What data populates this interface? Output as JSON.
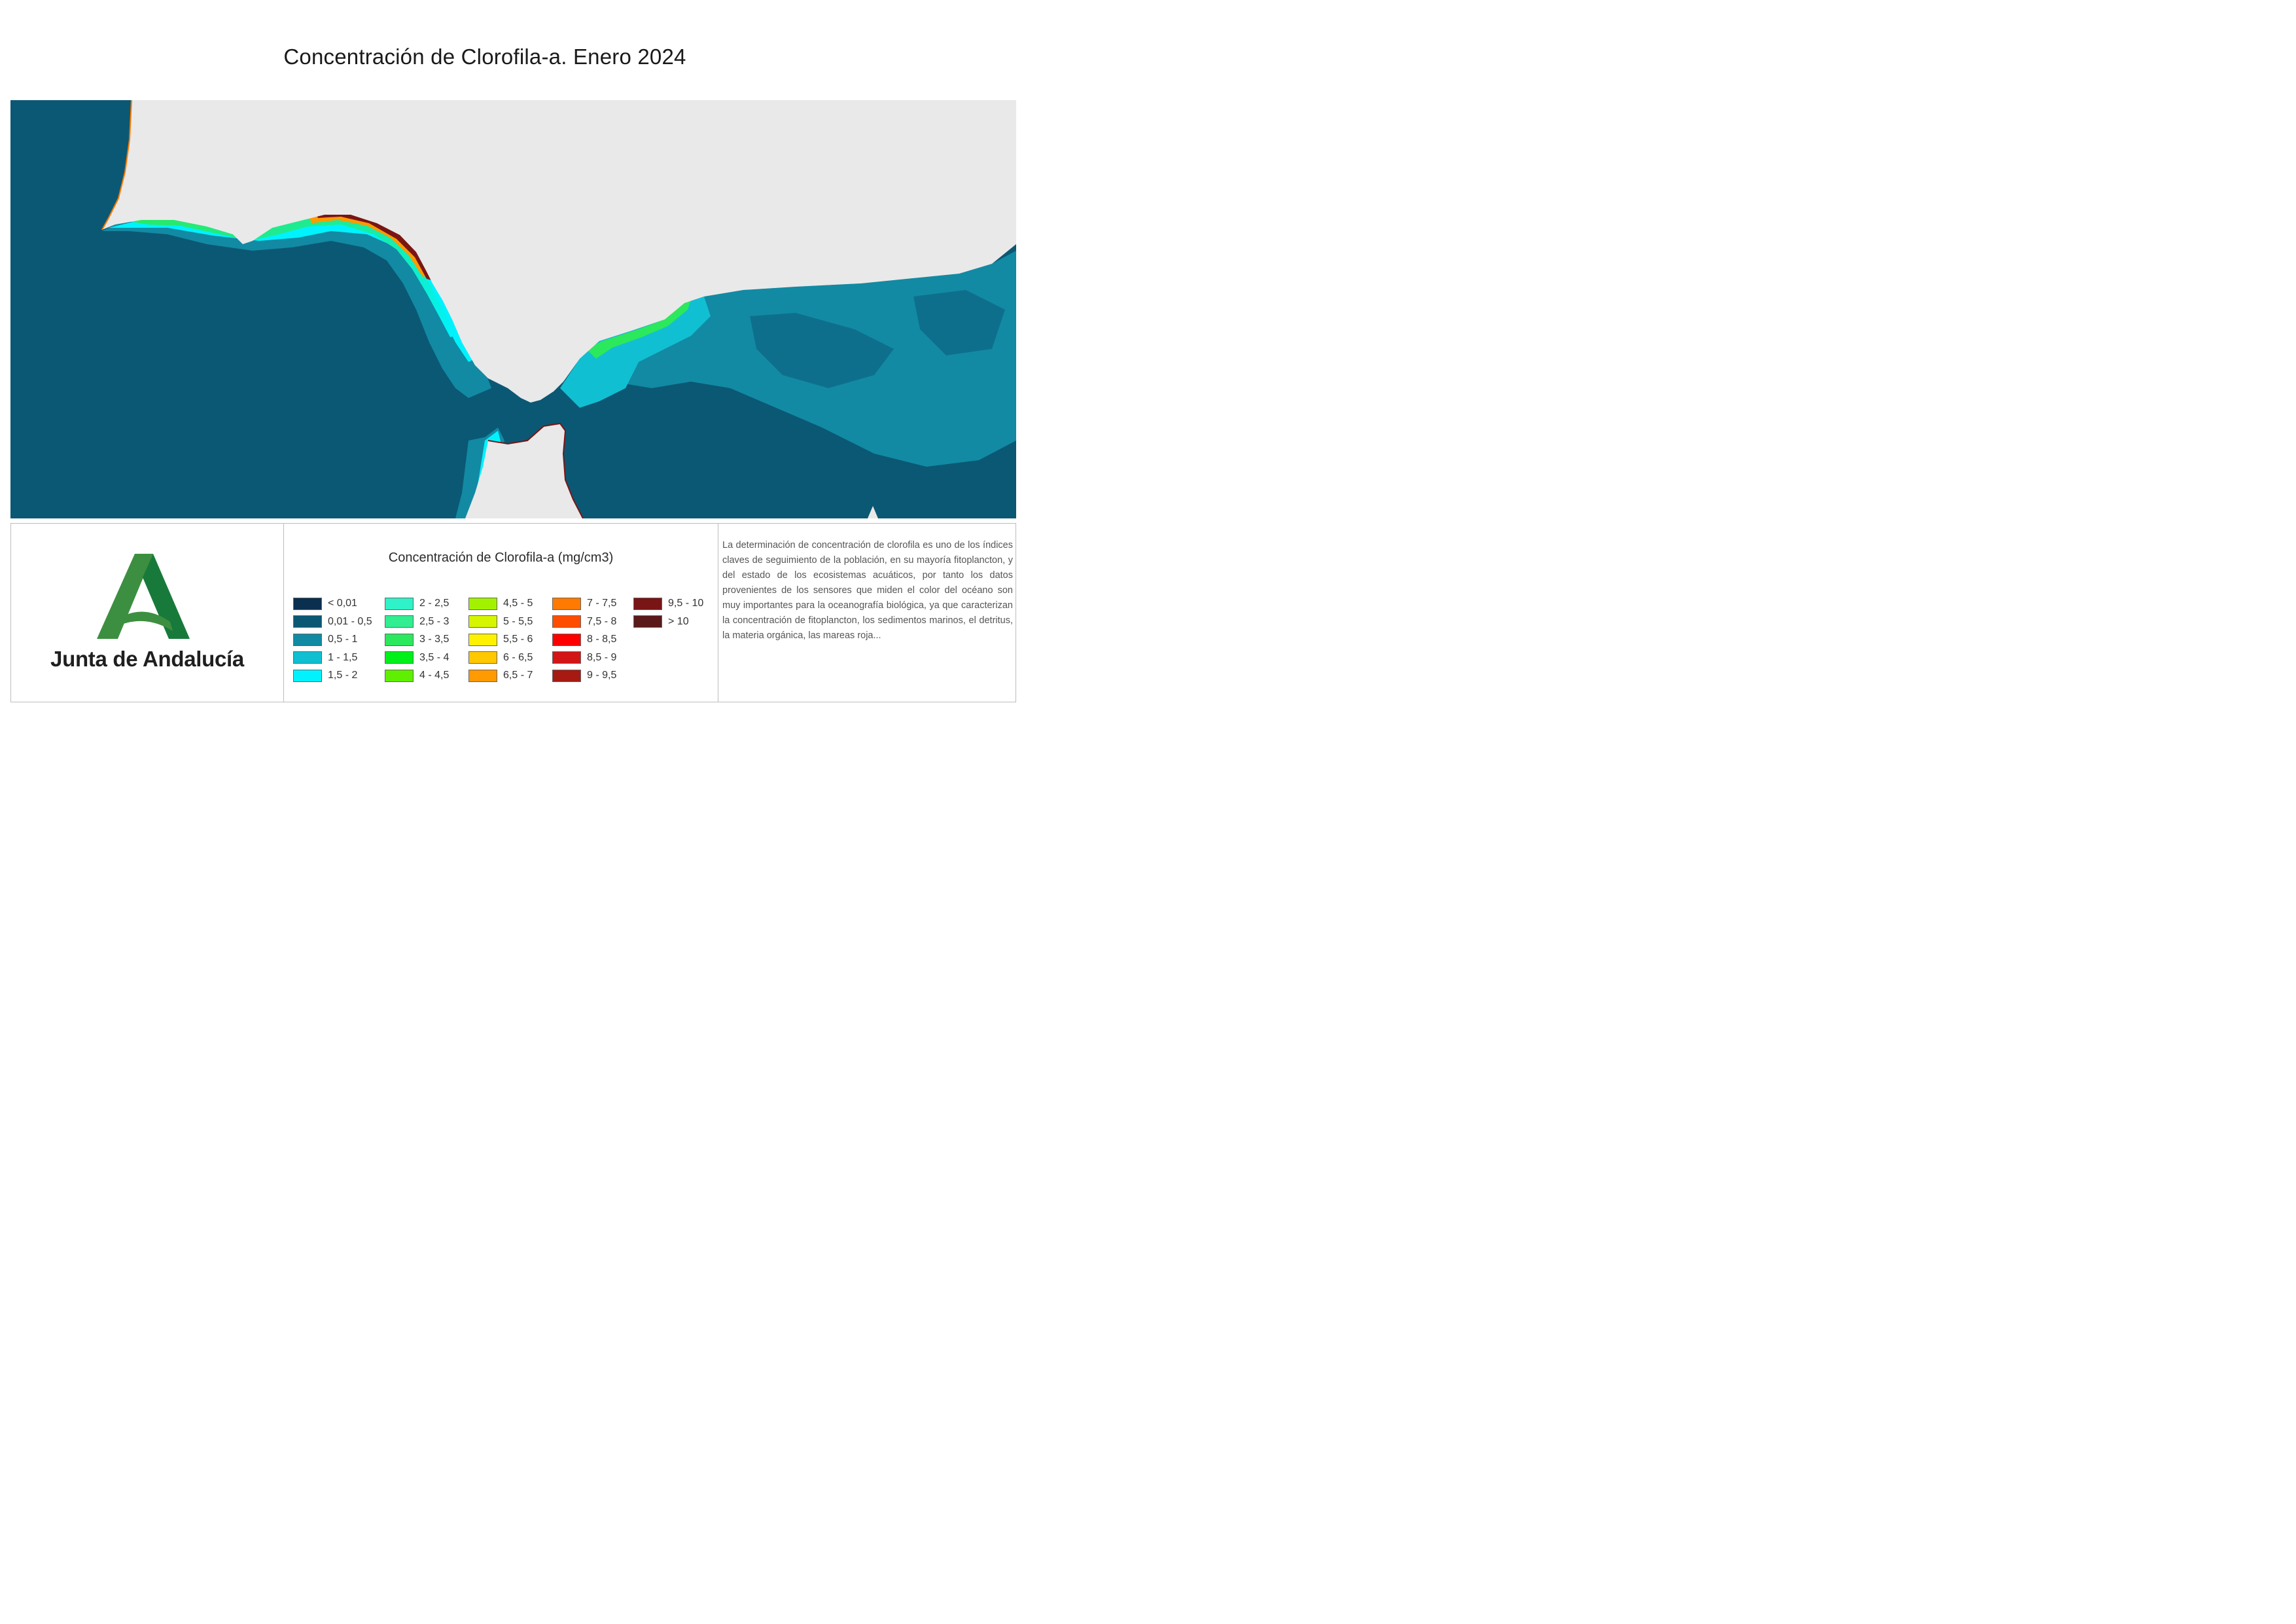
{
  "title": "Concentración de Clorofila-a. Enero 2024",
  "colors": {
    "land": "#e9e9e9",
    "sea": "#0b5874",
    "sea_mid": "#128aa3",
    "logo_green_light": "#3c8f40",
    "logo_green_dark": "#187a3a"
  },
  "logo": {
    "icon": "junta-andalucia-a-logo",
    "organization": "Junta de Andalucía"
  },
  "legend": {
    "title": "Concentración de Clorofila-a (mg/cm3)",
    "items": [
      {
        "label": "< 0,01",
        "color": "#0a2f4f"
      },
      {
        "label": "0,01 - 0,5",
        "color": "#0b5874"
      },
      {
        "label": "0,5 - 1",
        "color": "#128aa3"
      },
      {
        "label": "1 - 1,5",
        "color": "#11bfd2"
      },
      {
        "label": "1,5 - 2",
        "color": "#00f2ff"
      },
      {
        "label": "2 - 2,5",
        "color": "#2ff2c8"
      },
      {
        "label": "2,5 - 3",
        "color": "#31ee90"
      },
      {
        "label": "3 - 3,5",
        "color": "#2ce85c"
      },
      {
        "label": "3,5 - 4",
        "color": "#00f01a"
      },
      {
        "label": "4 - 4,5",
        "color": "#5ef000"
      },
      {
        "label": "4,5 - 5",
        "color": "#a2f200"
      },
      {
        "label": "5 - 5,5",
        "color": "#d6f500"
      },
      {
        "label": "5,5 - 6",
        "color": "#fff200"
      },
      {
        "label": "6 - 6,5",
        "color": "#ffc800"
      },
      {
        "label": "6,5 - 7",
        "color": "#ff9a00"
      },
      {
        "label": "7 - 7,5",
        "color": "#ff7a00"
      },
      {
        "label": "7,5 - 8",
        "color": "#ff4d00"
      },
      {
        "label": "8 - 8,5",
        "color": "#ff0000"
      },
      {
        "label": "8,5 - 9",
        "color": "#d41515"
      },
      {
        "label": "9 - 9,5",
        "color": "#a61a12"
      },
      {
        "label": "9,5 - 10",
        "color": "#7a1515"
      },
      {
        "label": "> 10",
        "color": "#5a1a1a"
      }
    ]
  },
  "description": "La determinación de concentración de clorofila es uno de los índices claves de seguimiento de la población, en su mayoría fitoplancton, y del estado de los ecosistemas acuáticos, por tanto los datos provenientes de los sensores que miden el color del océano son muy importantes para la oceanografía biológica, ya que caracterizan la concentración de fitoplancton, los sedimentos marinos, el detritus, la materia orgánica, las mareas roja..."
}
